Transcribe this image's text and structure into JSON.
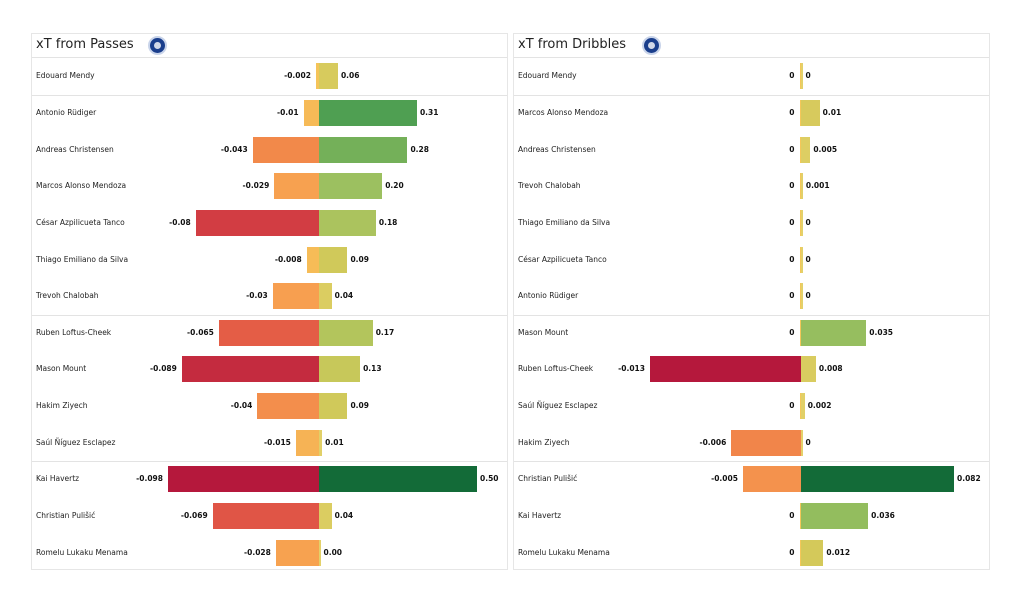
{
  "chart_data": [
    {
      "type": "bar",
      "orientation": "horizontal-diverging",
      "title": "xT from Passes",
      "logo": "chelsea-crest",
      "players": [
        "Edouard Mendy",
        "Antonio Rüdiger",
        "Andreas Christensen",
        "Marcos  Alonso Mendoza",
        "César Azpilicueta Tanco",
        "Thiago Emiliano da Silva",
        "Trevoh Chalobah",
        "Ruben Loftus-Cheek",
        "Mason Mount",
        "Hakim Ziyech",
        "Saúl Ñíguez Esclapez",
        "Kai Havertz",
        "Christian Pulišić",
        "Romelu Lukaku Menama"
      ],
      "negative": [
        -0.002,
        -0.01,
        -0.043,
        -0.029,
        -0.08,
        -0.008,
        -0.03,
        -0.065,
        -0.089,
        -0.04,
        -0.015,
        -0.098,
        -0.069,
        -0.028
      ],
      "negative_labels": [
        "-0.002",
        "-0.01",
        "-0.043",
        "-0.029",
        "-0.08",
        "-0.008",
        "-0.03",
        "-0.065",
        "-0.089",
        "-0.04",
        "-0.015",
        "-0.098",
        "-0.069",
        "-0.028"
      ],
      "positive": [
        0.06,
        0.31,
        0.28,
        0.2,
        0.18,
        0.09,
        0.04,
        0.17,
        0.13,
        0.09,
        0.01,
        0.5,
        0.04,
        0.0
      ],
      "positive_labels": [
        "0.06",
        "0.31",
        "0.28",
        "0.20",
        "0.18",
        "0.09",
        "0.04",
        "0.17",
        "0.13",
        "0.09",
        "0.01",
        "0.50",
        "0.04",
        "0.00"
      ],
      "group_breaks_after": [
        0,
        6,
        10
      ],
      "colormap": "red-yellow-green"
    },
    {
      "type": "bar",
      "orientation": "horizontal-diverging",
      "title": "xT from Dribbles",
      "logo": "chelsea-crest",
      "players": [
        "Edouard Mendy",
        "Marcos  Alonso Mendoza",
        "Andreas Christensen",
        "Trevoh Chalobah",
        "Thiago Emiliano da Silva",
        "César Azpilicueta Tanco",
        "Antonio Rüdiger",
        "Mason Mount",
        "Ruben Loftus-Cheek",
        "Saúl Ñíguez Esclapez",
        "Hakim Ziyech",
        "Christian Pulišić",
        "Kai Havertz",
        "Romelu Lukaku Menama"
      ],
      "negative": [
        0,
        0,
        0,
        0,
        0,
        0,
        0,
        0,
        -0.013,
        0,
        -0.006,
        -0.005,
        0,
        0
      ],
      "negative_labels": [
        "0",
        "0",
        "0",
        "0",
        "0",
        "0",
        "0",
        "0",
        "-0.013",
        "0",
        "-0.006",
        "-0.005",
        "0",
        "0"
      ],
      "positive": [
        0,
        0.01,
        0.005,
        0.001,
        0,
        0,
        0,
        0.035,
        0.008,
        0.002,
        0,
        0.082,
        0.036,
        0.012
      ],
      "positive_labels": [
        "0",
        "0.01",
        "0.005",
        "0.001",
        "0",
        "0",
        "0",
        "0.035",
        "0.008",
        "0.002",
        "0",
        "0.082",
        "0.036",
        "0.012"
      ],
      "group_breaks_after": [
        0,
        6,
        10
      ],
      "colormap": "red-yellow-green"
    }
  ]
}
